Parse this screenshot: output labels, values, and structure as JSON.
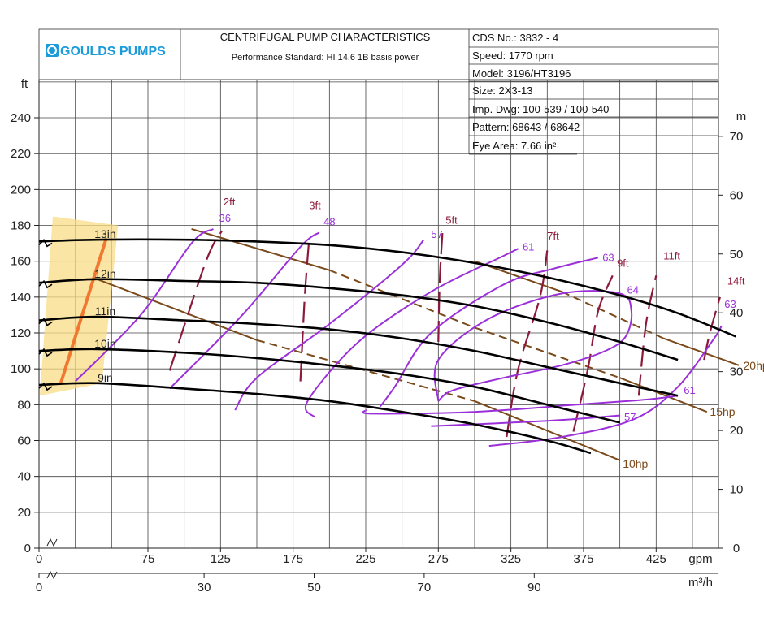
{
  "header": {
    "logo_text": "GOULDS PUMPS",
    "title": "CENTRIFUGAL PUMP CHARACTERISTICS",
    "subtitle": "Performance Standard: HI 14.6 1B basis power",
    "info": [
      "CDS No.: 3832 - 4",
      "Speed: 1770 rpm",
      "Model: 3196/HT3196",
      "Size: 2X3-13",
      "Imp. Dwg: 100-539 / 100-540",
      "Pattern: 68643 / 68642",
      "Eye Area: 7.66 in²"
    ]
  },
  "colors": {
    "head_curve": "#000000",
    "efficiency": "#9b30d9",
    "npsh": "#8b1a3a",
    "power": "#7a4a1c",
    "highlight_fill": "#f9dc86",
    "highlight_line": "#f07830"
  },
  "chart_data": {
    "type": "line",
    "x_axis": {
      "unit": "gpm",
      "range": [
        0,
        480
      ],
      "ticks": [
        0,
        75,
        125,
        175,
        225,
        275,
        325,
        375,
        425
      ],
      "tick_labels": [
        "0",
        "75",
        "125",
        "175",
        "225",
        "275",
        "325",
        "375",
        "425"
      ]
    },
    "x2_axis": {
      "unit": "m³/h",
      "ticks": [
        0,
        30,
        50,
        70,
        90
      ],
      "tick_labels": [
        "0",
        "30",
        "50",
        "70",
        "90"
      ]
    },
    "y_axis": {
      "unit": "ft",
      "range": [
        0,
        260
      ],
      "ticks": [
        0,
        20,
        40,
        60,
        80,
        100,
        120,
        140,
        160,
        180,
        200,
        220,
        240
      ],
      "tick_labels": [
        "0",
        "20",
        "40",
        "60",
        "80",
        "100",
        "120",
        "140",
        "160",
        "180",
        "200",
        "220",
        "240"
      ]
    },
    "y2_axis": {
      "unit": "m",
      "ticks": [
        0,
        10,
        20,
        30,
        40,
        50,
        60,
        70
      ],
      "tick_labels": [
        "0",
        "10",
        "20",
        "30",
        "40",
        "50",
        "60",
        "70"
      ]
    },
    "grid": true,
    "head_curves": [
      {
        "name": "13in",
        "points": [
          [
            0,
            171
          ],
          [
            40,
            172
          ],
          [
            100,
            172
          ],
          [
            150,
            171
          ],
          [
            200,
            169
          ],
          [
            250,
            165
          ],
          [
            300,
            159
          ],
          [
            350,
            151
          ],
          [
            400,
            141
          ],
          [
            440,
            131
          ],
          [
            480,
            118
          ]
        ]
      },
      {
        "name": "12in",
        "points": [
          [
            0,
            148
          ],
          [
            40,
            150
          ],
          [
            100,
            149
          ],
          [
            150,
            148
          ],
          [
            200,
            145
          ],
          [
            250,
            141
          ],
          [
            300,
            135
          ],
          [
            350,
            126
          ],
          [
            400,
            115
          ],
          [
            440,
            105
          ]
        ]
      },
      {
        "name": "11in",
        "points": [
          [
            0,
            127
          ],
          [
            40,
            129
          ],
          [
            100,
            127
          ],
          [
            150,
            125
          ],
          [
            200,
            122
          ],
          [
            250,
            117
          ],
          [
            300,
            110
          ],
          [
            350,
            101
          ],
          [
            400,
            92
          ],
          [
            440,
            85
          ]
        ]
      },
      {
        "name": "10in",
        "points": [
          [
            0,
            110
          ],
          [
            40,
            111
          ],
          [
            100,
            109
          ],
          [
            150,
            106
          ],
          [
            200,
            102
          ],
          [
            250,
            97
          ],
          [
            300,
            90
          ],
          [
            350,
            80
          ],
          [
            400,
            70
          ]
        ]
      },
      {
        "name": "9in",
        "points": [
          [
            0,
            91
          ],
          [
            40,
            92
          ],
          [
            100,
            89
          ],
          [
            150,
            86
          ],
          [
            200,
            82
          ],
          [
            250,
            76
          ],
          [
            300,
            69
          ],
          [
            350,
            60
          ],
          [
            380,
            53
          ]
        ]
      }
    ],
    "efficiency_curves": [
      {
        "name": "36",
        "points": [
          [
            25,
            93
          ],
          [
            70,
            130
          ],
          [
            105,
            170
          ],
          [
            120,
            178
          ]
        ],
        "label_at": [
          124,
          182
        ]
      },
      {
        "name": "48",
        "points": [
          [
            90,
            89
          ],
          [
            140,
            130
          ],
          [
            180,
            168
          ],
          [
            193,
            176
          ]
        ],
        "label_at": [
          196,
          180
        ]
      },
      {
        "name": "57",
        "points": [
          [
            135,
            77
          ],
          [
            150,
            95
          ],
          [
            200,
            125
          ],
          [
            250,
            158
          ],
          [
            265,
            172
          ]
        ],
        "label_at": [
          270,
          173
        ]
      },
      {
        "name": "61",
        "points": [
          [
            190,
            73
          ],
          [
            185,
            82
          ],
          [
            220,
            115
          ],
          [
            270,
            143
          ],
          [
            320,
            163
          ],
          [
            330,
            167
          ]
        ],
        "label_at": [
          333,
          166
        ]
      },
      {
        "name": "63",
        "points": [
          [
            235,
            79
          ],
          [
            245,
            90
          ],
          [
            270,
            120
          ],
          [
            320,
            147
          ],
          [
            355,
            156
          ],
          [
            385,
            162
          ]
        ],
        "label_at": [
          388,
          160
        ]
      },
      {
        "name": "64",
        "points": [
          [
            275,
            82
          ],
          [
            275,
            105
          ],
          [
            310,
            128
          ],
          [
            360,
            142
          ],
          [
            400,
            142
          ],
          [
            408,
            132
          ],
          [
            404,
            118
          ],
          [
            390,
            110
          ],
          [
            360,
            102
          ],
          [
            320,
            95
          ],
          [
            285,
            88
          ],
          [
            275,
            82
          ]
        ],
        "label_at": [
          405,
          142
        ]
      },
      {
        "name": "61",
        "points": [
          [
            225,
            77
          ],
          [
            230,
            75
          ],
          [
            300,
            76
          ],
          [
            370,
            80
          ],
          [
            420,
            83
          ],
          [
            440,
            85
          ]
        ],
        "label_at": [
          444,
          86
        ]
      },
      {
        "name": "57",
        "points": [
          [
            270,
            68
          ],
          [
            350,
            71
          ],
          [
            400,
            74
          ]
        ],
        "label_at": [
          403,
          71
        ]
      },
      {
        "name": "63",
        "points": [
          [
            310,
            57
          ],
          [
            360,
            62
          ],
          [
            410,
            72
          ],
          [
            440,
            90
          ],
          [
            465,
            117
          ],
          [
            470,
            124
          ]
        ],
        "label_at": [
          472,
          134
        ]
      }
    ],
    "npsh_lines": [
      {
        "name": "2ft",
        "points": [
          [
            90,
            99
          ],
          [
            115,
            160
          ],
          [
            126,
            177
          ]
        ],
        "label_at": [
          127,
          191
        ]
      },
      {
        "name": "3ft",
        "points": [
          [
            180,
            93
          ],
          [
            183,
            140
          ],
          [
            186,
            172
          ]
        ],
        "label_at": [
          186,
          189
        ]
      },
      {
        "name": "5ft",
        "points": [
          [
            275,
            115
          ],
          [
            276,
            150
          ],
          [
            278,
            178
          ]
        ],
        "label_at": [
          280,
          181
        ]
      },
      {
        "name": "7ft",
        "points": [
          [
            322,
            62
          ],
          [
            330,
            100
          ],
          [
            345,
            140
          ],
          [
            350,
            166
          ]
        ],
        "label_at": [
          350,
          172
        ]
      },
      {
        "name": "9ft",
        "points": [
          [
            368,
            65
          ],
          [
            378,
            100
          ],
          [
            385,
            132
          ],
          [
            395,
            152
          ]
        ],
        "label_at": [
          398,
          157
        ]
      },
      {
        "name": "11ft",
        "points": [
          [
            413,
            85
          ],
          [
            418,
            125
          ],
          [
            425,
            152
          ]
        ],
        "label_at": [
          430,
          161
        ]
      },
      {
        "name": "14ft",
        "points": [
          [
            458,
            105
          ],
          [
            462,
            120
          ],
          [
            469,
            140
          ]
        ],
        "label_at": [
          474,
          147
        ]
      }
    ],
    "power_lines": [
      {
        "name": "10hp",
        "points": [
          [
            40,
            150
          ],
          [
            150,
            116
          ],
          [
            300,
            82
          ],
          [
            400,
            49
          ]
        ],
        "label_at": [
          402,
          47
        ]
      },
      {
        "name": "15hp",
        "points": [
          [
            105,
            178
          ],
          [
            200,
            155
          ],
          [
            300,
            123
          ],
          [
            400,
            95
          ],
          [
            460,
            76
          ]
        ],
        "label_at": [
          462,
          76
        ]
      },
      {
        "name": "20hp",
        "points": [
          [
            300,
            160
          ],
          [
            360,
            143
          ],
          [
            430,
            117
          ],
          [
            482,
            102
          ]
        ],
        "label_at": [
          485,
          102
        ]
      }
    ],
    "highlight": {
      "gpm_range": [
        5,
        50
      ],
      "operating_line": [
        [
          15,
          92
        ],
        [
          46,
          172
        ]
      ]
    }
  }
}
